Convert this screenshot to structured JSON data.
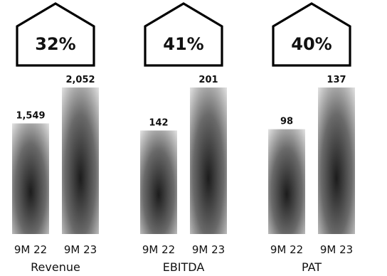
{
  "chart_data": {
    "type": "bar",
    "groups": [
      {
        "name": "Revenue",
        "growth": "32%",
        "categories": [
          "9M 22",
          "9M 23"
        ],
        "values": [
          1549,
          2052
        ],
        "value_labels": [
          "1,549",
          "2,052"
        ]
      },
      {
        "name": "EBITDA",
        "growth": "41%",
        "categories": [
          "9M 22",
          "9M 23"
        ],
        "values": [
          142,
          201
        ],
        "value_labels": [
          "142",
          "201"
        ]
      },
      {
        "name": "PAT",
        "growth": "40%",
        "categories": [
          "9M 22",
          "9M 23"
        ],
        "values": [
          98,
          137
        ],
        "value_labels": [
          "98",
          "137"
        ]
      }
    ],
    "grid": false,
    "legend": "none"
  },
  "colors": {
    "bar_center": "#1c1c1c",
    "bar_edge": "#dedede",
    "text": "#111111",
    "house_stroke": "#000000"
  }
}
